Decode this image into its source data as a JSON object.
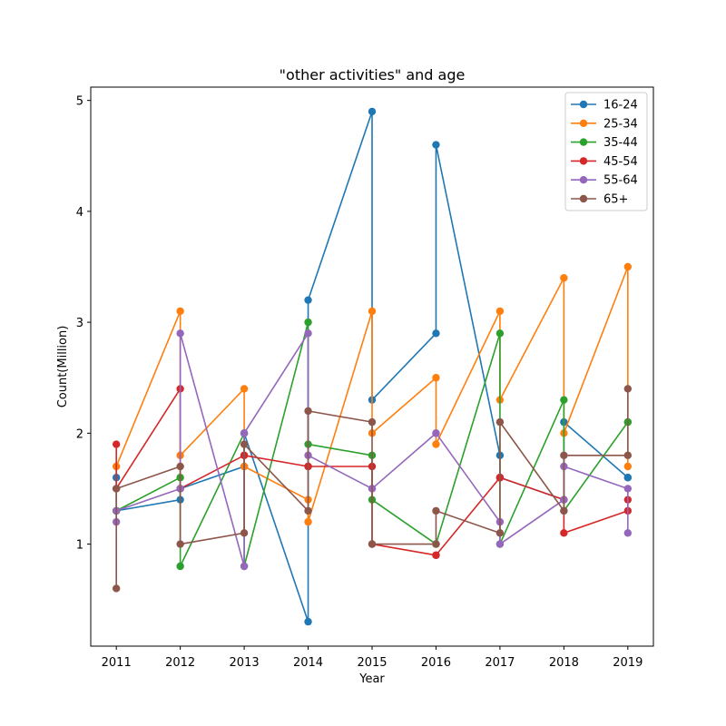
{
  "chart_data": {
    "type": "line",
    "title": "\"other activities\" and age",
    "xlabel": "Year",
    "ylabel": "Count(Million)",
    "xticks": [
      2011,
      2012,
      2013,
      2014,
      2015,
      2016,
      2017,
      2018,
      2019
    ],
    "yticks": [
      1,
      2,
      3,
      4,
      5
    ],
    "xlim": [
      2010.6,
      2019.4
    ],
    "ylim": [
      0.08,
      5.12
    ],
    "grid": false,
    "legend_position": "top-right",
    "series": [
      {
        "name": "16-24",
        "color": "#1f77b4",
        "x": [
          2011,
          2011,
          2012,
          2012,
          2013,
          2013,
          2014,
          2014,
          2015,
          2015,
          2016,
          2016,
          2017,
          2017,
          2018,
          2018,
          2019,
          2019
        ],
        "values": [
          1.6,
          1.3,
          1.4,
          1.5,
          1.7,
          2.0,
          0.3,
          3.2,
          4.9,
          2.3,
          2.9,
          4.6,
          1.8,
          1.6,
          1.4,
          2.1,
          1.6,
          1.6
        ]
      },
      {
        "name": "25-34",
        "color": "#ff7f0e",
        "x": [
          2011,
          2011,
          2012,
          2012,
          2013,
          2013,
          2014,
          2014,
          2015,
          2015,
          2016,
          2016,
          2017,
          2017,
          2018,
          2018,
          2019,
          2019
        ],
        "values": [
          1.3,
          1.7,
          3.1,
          1.8,
          2.4,
          1.7,
          1.4,
          1.2,
          3.1,
          2.0,
          2.5,
          1.9,
          3.1,
          2.3,
          3.4,
          2.0,
          3.5,
          1.7
        ]
      },
      {
        "name": "35-44",
        "color": "#2ca02c",
        "x": [
          2011,
          2011,
          2012,
          2012,
          2013,
          2013,
          2014,
          2014,
          2015,
          2015,
          2016,
          2016,
          2017,
          2017,
          2018,
          2018,
          2019,
          2019
        ],
        "values": [
          1.3,
          1.3,
          1.6,
          0.8,
          2.0,
          0.8,
          3.0,
          1.9,
          1.8,
          1.4,
          1.0,
          1.0,
          2.9,
          1.0,
          2.3,
          1.3,
          2.1,
          2.1
        ]
      },
      {
        "name": "45-54",
        "color": "#d62728",
        "x": [
          2011,
          2011,
          2012,
          2012,
          2013,
          2013,
          2014,
          2014,
          2015,
          2015,
          2016,
          2016,
          2017,
          2017,
          2018,
          2018,
          2019,
          2019
        ],
        "values": [
          1.9,
          1.5,
          2.4,
          1.5,
          1.8,
          1.8,
          1.7,
          1.7,
          1.7,
          1.0,
          0.9,
          0.9,
          1.6,
          1.6,
          1.4,
          1.1,
          1.3,
          1.4
        ]
      },
      {
        "name": "55-64",
        "color": "#9467bd",
        "x": [
          2011,
          2011,
          2012,
          2012,
          2013,
          2013,
          2014,
          2014,
          2015,
          2015,
          2016,
          2016,
          2017,
          2017,
          2018,
          2018,
          2019,
          2019
        ],
        "values": [
          1.2,
          1.3,
          1.5,
          2.9,
          0.8,
          2.0,
          2.9,
          1.8,
          1.5,
          1.5,
          2.0,
          2.0,
          1.2,
          1.0,
          1.4,
          1.7,
          1.5,
          1.1
        ]
      },
      {
        "name": "65+",
        "color": "#8c564b",
        "x": [
          2011,
          2011,
          2012,
          2012,
          2013,
          2013,
          2014,
          2014,
          2015,
          2015,
          2016,
          2016,
          2017,
          2017,
          2018,
          2018,
          2019,
          2019
        ],
        "values": [
          0.6,
          1.5,
          1.7,
          1.0,
          1.1,
          1.9,
          1.3,
          2.2,
          2.1,
          1.0,
          1.0,
          1.3,
          1.1,
          2.1,
          1.3,
          1.8,
          1.8,
          2.4
        ]
      }
    ]
  }
}
